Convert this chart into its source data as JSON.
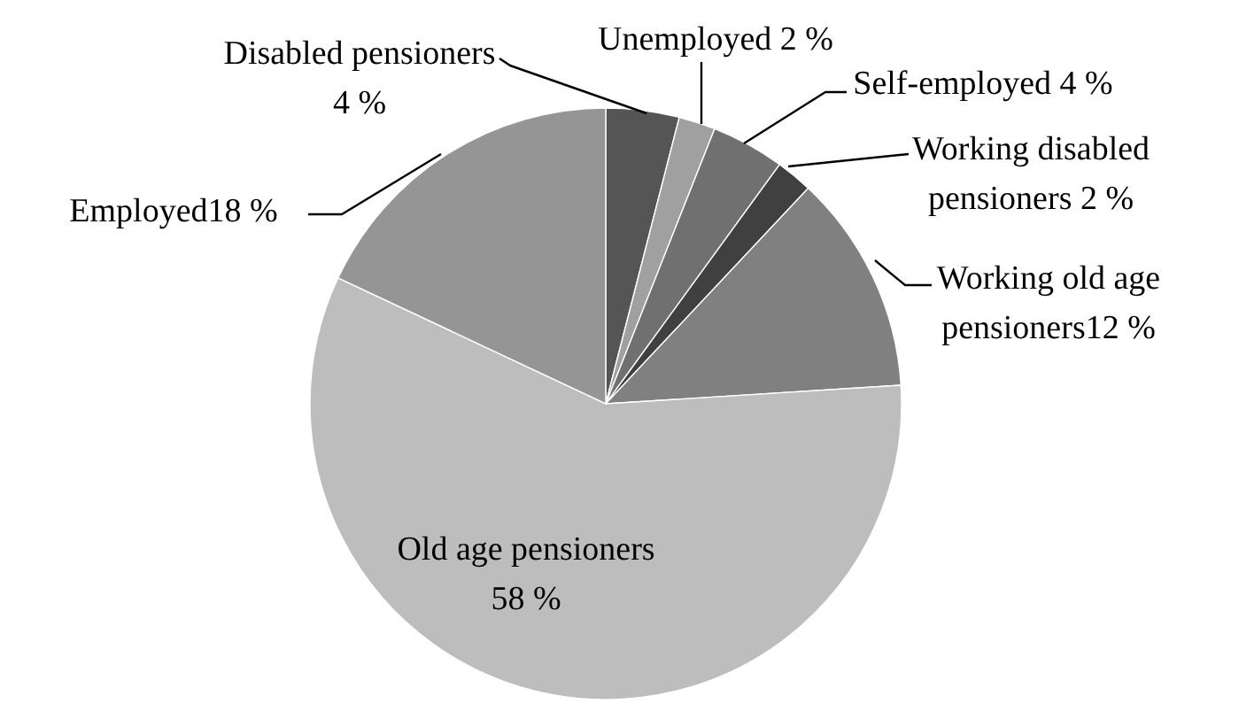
{
  "chart_data": {
    "type": "pie",
    "categories": [
      "Disabled pensioners",
      "Unemployed",
      "Self-employed",
      "Working disabled pensioners",
      "Working old age pensioners",
      "Old age pensioners",
      "Employed"
    ],
    "values": [
      4,
      2,
      4,
      2,
      12,
      58,
      18
    ],
    "value_labels": [
      "4 %",
      "2 %",
      "4 %",
      "2 %",
      "12 %",
      "58 %",
      "18 %"
    ],
    "colors": [
      "#555555",
      "#a0a0a0",
      "#707070",
      "#404040",
      "#808080",
      "#bdbdbd",
      "#959595"
    ]
  }
}
